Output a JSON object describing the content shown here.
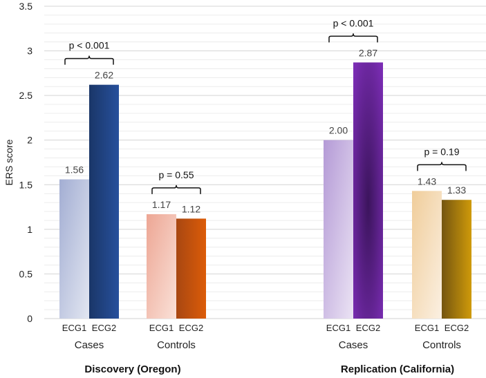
{
  "chart_data": {
    "type": "bar",
    "ylabel": "ERS score",
    "ylim": [
      0,
      3.5
    ],
    "yticks": [
      "0",
      "0.5",
      "1",
      "1.5",
      "2",
      "2.5",
      "3",
      "3.5"
    ],
    "grid": "horizontal, minor every 0.1",
    "groups": [
      {
        "name": "Discovery (Oregon)",
        "subgroups": [
          {
            "name": "Cases",
            "bars": [
              {
                "label": "ECG1",
                "value": 1.56,
                "text": "1.56"
              },
              {
                "label": "ECG2",
                "value": 2.62,
                "text": "2.62"
              }
            ],
            "p": "p < 0.001"
          },
          {
            "name": "Controls",
            "bars": [
              {
                "label": "ECG1",
                "value": 1.17,
                "text": "1.17"
              },
              {
                "label": "ECG2",
                "value": 1.12,
                "text": "1.12"
              }
            ],
            "p": "p = 0.55"
          }
        ]
      },
      {
        "name": "Replication (California)",
        "subgroups": [
          {
            "name": "Cases",
            "bars": [
              {
                "label": "ECG1",
                "value": 2.0,
                "text": "2.00"
              },
              {
                "label": "ECG2",
                "value": 2.87,
                "text": "2.87"
              }
            ],
            "p": "p < 0.001"
          },
          {
            "name": "Controls",
            "bars": [
              {
                "label": "ECG1",
                "value": 1.43,
                "text": "1.43"
              },
              {
                "label": "ECG2",
                "value": 1.33,
                "text": "1.33"
              }
            ],
            "p": "p = 0.19"
          }
        ]
      }
    ],
    "colors": {
      "disc_cases_ecg1": [
        "#a3aed3",
        "#e2e6f1"
      ],
      "disc_cases_ecg2": [
        "#1a3668",
        "#27509c"
      ],
      "disc_ctrl_ecg1": [
        "#eda694",
        "#fae1d8"
      ],
      "disc_ctrl_ecg2": [
        "#a84712",
        "#dc5c08"
      ],
      "rep_cases_ecg1": [
        "#b49ad6",
        "#ebe3f4"
      ],
      "rep_cases_ecg2": [
        "#3b145c",
        "#7b2db4"
      ],
      "rep_ctrl_ecg1": [
        "#f0cd9a",
        "#fbf0e2"
      ],
      "rep_ctrl_ecg2": [
        "#745510",
        "#cf9a0a"
      ]
    }
  }
}
